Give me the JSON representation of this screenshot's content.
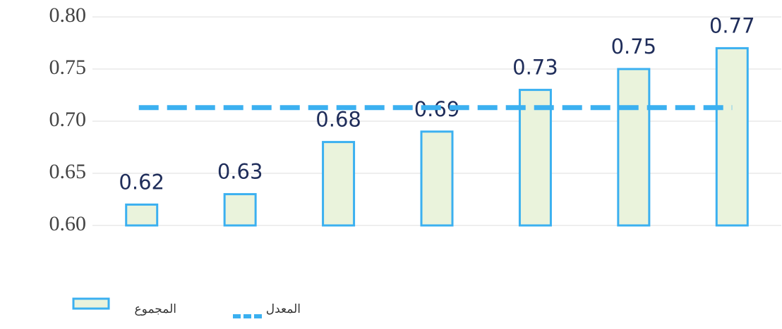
{
  "chart_data": {
    "type": "bar",
    "categories": [
      null,
      null,
      null,
      null,
      null,
      null,
      null
    ],
    "series": [
      {
        "name": "المجموع",
        "type": "bar",
        "color": "#eaf3dc",
        "stroke": "#3bb0f0",
        "values": [
          0.62,
          0.63,
          0.68,
          0.69,
          0.73,
          0.75,
          0.77
        ]
      },
      {
        "name": "المعدل",
        "type": "line",
        "color": "#3bb0f0",
        "dashed": true,
        "values": [
          0.713,
          0.713,
          0.713,
          0.713,
          0.713,
          0.713,
          0.713
        ]
      }
    ],
    "ylim": [
      0.6,
      0.8
    ],
    "yticks": [
      {
        "value": 0.6,
        "label": "0.60"
      },
      {
        "value": 0.65,
        "label": "0.65"
      },
      {
        "value": 0.7,
        "label": "0.70"
      },
      {
        "value": 0.75,
        "label": "0.75"
      },
      {
        "value": 0.8,
        "label": "0.80"
      }
    ],
    "grid": true,
    "legend": "bottom-left"
  }
}
